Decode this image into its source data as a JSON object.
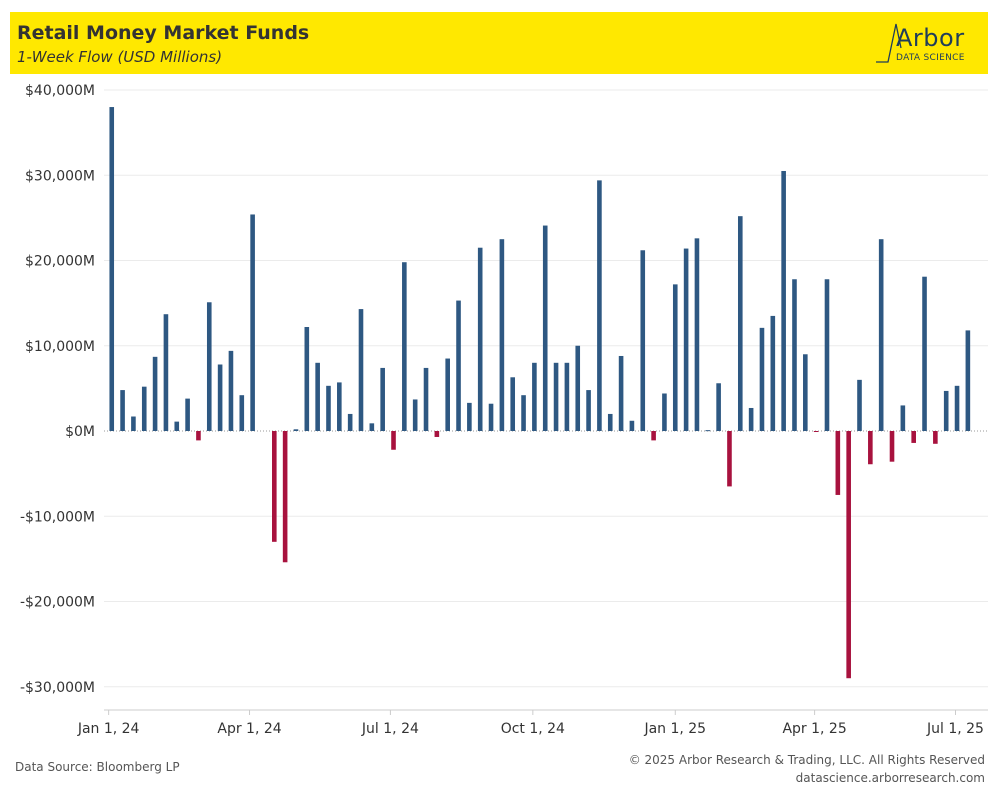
{
  "header": {
    "title": "Retail Money Market Funds",
    "subtitle": "1-Week Flow (USD Millions)",
    "logo_word": "Arbor",
    "logo_sub": "DATA SCIENCE"
  },
  "footer": {
    "source": "Data Source: Bloomberg LP",
    "copyright": "© 2025 Arbor Research & Trading, LLC. All Rights Reserved",
    "url": "datascience.arborresearch.com"
  },
  "colors": {
    "positive": "#2e5882",
    "negative": "#a8123e",
    "header_bg": "#ffe800",
    "grid": "#ebebeb"
  },
  "chart_data": {
    "type": "bar",
    "title": "Retail Money Market Funds",
    "subtitle": "1-Week Flow (USD Millions)",
    "xlabel": "",
    "ylabel": "",
    "ylim": [
      -33000,
      40000
    ],
    "yticks": [
      40000,
      30000,
      20000,
      10000,
      0,
      -10000,
      -20000,
      -30000
    ],
    "ytick_labels": [
      "$40,000M",
      "$30,000M",
      "$20,000M",
      "$10,000M",
      "$0M",
      "-$10,000M",
      "-$20,000M",
      "-$30,000M"
    ],
    "x_start": "2023-12-29",
    "x_end": "2025-07-22",
    "xticks": [
      "2024-01-01",
      "2024-04-01",
      "2024-07-01",
      "2024-10-01",
      "2025-01-01",
      "2025-04-01",
      "2025-07-01"
    ],
    "xtick_labels": [
      "Jan 1, 24",
      "Apr 1, 24",
      "Jul 1, 24",
      "Oct 1, 24",
      "Jan 1, 25",
      "Apr 1, 25",
      "Jul 1, 25"
    ],
    "grid": true,
    "legend": "none",
    "dates": [
      "2024-01-03",
      "2024-01-10",
      "2024-01-17",
      "2024-01-24",
      "2024-01-31",
      "2024-02-07",
      "2024-02-14",
      "2024-02-21",
      "2024-02-28",
      "2024-03-06",
      "2024-03-13",
      "2024-03-20",
      "2024-03-27",
      "2024-04-03",
      "2024-04-10",
      "2024-04-17",
      "2024-04-24",
      "2024-05-01",
      "2024-05-08",
      "2024-05-15",
      "2024-05-22",
      "2024-05-29",
      "2024-06-05",
      "2024-06-12",
      "2024-06-19",
      "2024-06-26",
      "2024-07-03",
      "2024-07-10",
      "2024-07-17",
      "2024-07-24",
      "2024-07-31",
      "2024-08-07",
      "2024-08-14",
      "2024-08-21",
      "2024-08-28",
      "2024-09-04",
      "2024-09-11",
      "2024-09-18",
      "2024-09-25",
      "2024-10-02",
      "2024-10-09",
      "2024-10-16",
      "2024-10-23",
      "2024-10-30",
      "2024-11-06",
      "2024-11-13",
      "2024-11-20",
      "2024-11-27",
      "2024-12-04",
      "2024-12-11",
      "2024-12-18",
      "2024-12-25",
      "2025-01-01",
      "2025-01-08",
      "2025-01-15",
      "2025-01-22",
      "2025-01-29",
      "2025-02-05",
      "2025-02-12",
      "2025-02-19",
      "2025-02-26",
      "2025-03-05",
      "2025-03-12",
      "2025-03-19",
      "2025-03-26",
      "2025-04-02",
      "2025-04-09",
      "2025-04-16",
      "2025-04-23",
      "2025-04-30",
      "2025-05-07",
      "2025-05-14",
      "2025-05-21",
      "2025-05-28",
      "2025-06-04",
      "2025-06-11",
      "2025-06-18",
      "2025-06-25",
      "2025-07-02",
      "2025-07-09",
      "2025-07-16"
    ],
    "values": [
      38000,
      4800,
      1700,
      5200,
      8700,
      13700,
      1100,
      3800,
      -1100,
      15100,
      7800,
      9400,
      4200,
      25400,
      0,
      -13000,
      -15400,
      200,
      12200,
      8000,
      5300,
      5700,
      2000,
      14300,
      900,
      7400,
      -2200,
      19800,
      3700,
      7400,
      -700,
      8500,
      15300,
      3300,
      21500,
      3200,
      22500,
      6300,
      4200,
      8000,
      24100,
      8000,
      8000,
      10000,
      4800,
      29400,
      2000,
      8800,
      1200,
      21200,
      -1100,
      4400,
      17200,
      21400,
      22600,
      100,
      5600,
      -6500,
      25200,
      2700,
      12100,
      13500,
      30500,
      17800,
      9000,
      -100,
      17800,
      -7500,
      -29000,
      6000,
      -3900,
      22500,
      -3600,
      3000,
      -1400,
      18100,
      -1500,
      4700,
      5300,
      11800,
      0
    ]
  }
}
